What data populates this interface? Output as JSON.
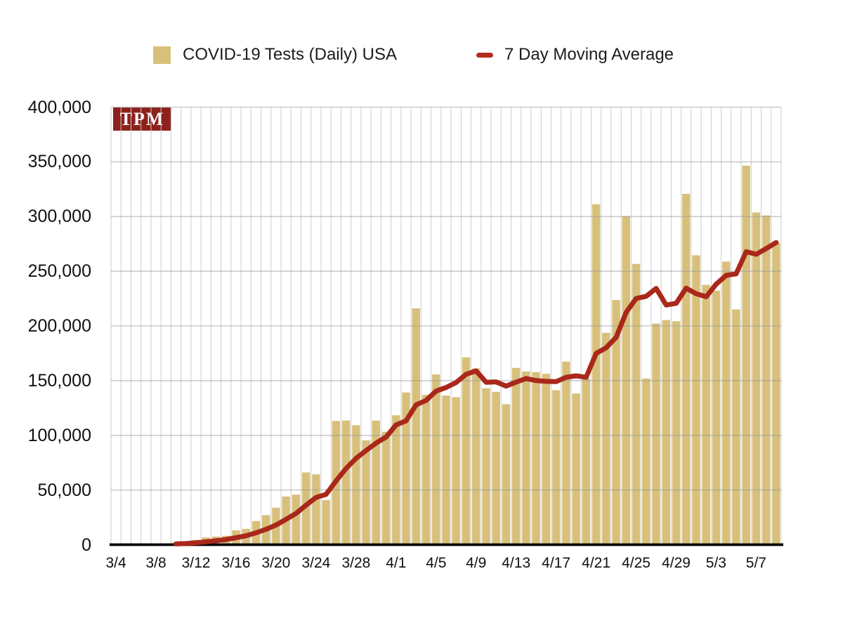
{
  "page": {
    "background": "#ffffff"
  },
  "legend": {
    "bar": {
      "label": "COVID-19 Tests (Daily) USA",
      "swatch_color": "#d8c07b"
    },
    "line": {
      "label": "7 Day Moving Average",
      "swatch_color": "#b22d1c"
    }
  },
  "badge": {
    "text": "TPM",
    "bg": "#8d211b",
    "fg": "#ffffff"
  },
  "colors": {
    "bar": "#d8c07b",
    "ma_line": "#a9281a",
    "grid_vertical": "#cdcdcd",
    "grid_horizontal": "#9a9a9a",
    "axis": "#0a0a0a",
    "label_text": "#111111"
  },
  "chart_data": {
    "type": "bar",
    "title": "COVID-19 Tests (Daily) USA",
    "xlabel": "",
    "ylabel": "",
    "ylim": [
      0,
      400000
    ],
    "grid": true,
    "legend_position": "top",
    "y_tick_labels": [
      "0",
      "50,000",
      "100,000",
      "150,000",
      "200,000",
      "250,000",
      "300,000",
      "350,000",
      "400,000"
    ],
    "x_tick_every": 4,
    "x_tick_labels": [
      "3/4",
      "3/8",
      "3/12",
      "3/16",
      "3/20",
      "3/24",
      "3/28",
      "4/1",
      "4/5",
      "4/9",
      "4/13",
      "4/17",
      "4/21",
      "4/25",
      "4/29",
      "5/3",
      "5/7"
    ],
    "categories": [
      "3/4",
      "3/5",
      "3/6",
      "3/7",
      "3/8",
      "3/9",
      "3/10",
      "3/11",
      "3/12",
      "3/13",
      "3/14",
      "3/15",
      "3/16",
      "3/17",
      "3/18",
      "3/19",
      "3/20",
      "3/21",
      "3/22",
      "3/23",
      "3/24",
      "3/25",
      "3/26",
      "3/27",
      "3/28",
      "3/29",
      "3/30",
      "3/31",
      "4/1",
      "4/2",
      "4/3",
      "4/4",
      "4/5",
      "4/6",
      "4/7",
      "4/8",
      "4/9",
      "4/10",
      "4/11",
      "4/12",
      "4/13",
      "4/14",
      "4/15",
      "4/16",
      "4/17",
      "4/18",
      "4/19",
      "4/20",
      "4/21",
      "4/22",
      "4/23",
      "4/24",
      "4/25",
      "4/26",
      "4/27",
      "4/28",
      "4/29",
      "4/30",
      "5/1",
      "5/2",
      "5/3",
      "5/4",
      "5/5",
      "5/6",
      "5/7",
      "5/8",
      "5/9"
    ],
    "series": [
      {
        "name": "COVID-19 Tests (Daily) USA",
        "type": "bar",
        "values": [
          100,
          200,
          400,
          600,
          800,
          1200,
          2000,
          3100,
          4500,
          6700,
          7500,
          8200,
          13100,
          14600,
          21700,
          27100,
          33900,
          44100,
          45800,
          66100,
          64400,
          40900,
          113200,
          113600,
          109300,
          95400,
          113600,
          103300,
          118300,
          139200,
          216100,
          137100,
          155700,
          136400,
          134900,
          171300,
          161200,
          143100,
          139800,
          128500,
          161700,
          158400,
          157800,
          156300,
          141300,
          167400,
          138200,
          152000,
          311200,
          193700,
          223600,
          300500,
          256700,
          152000,
          202200,
          205400,
          204300,
          320800,
          264600,
          237500,
          232200,
          258800,
          215100,
          346500,
          303700,
          301000,
          276000
        ]
      },
      {
        "name": "7 Day Moving Average",
        "type": "line",
        "derived": "trailing 7-day mean of the daily bar values, drawn from 3/10 onward"
      }
    ]
  }
}
